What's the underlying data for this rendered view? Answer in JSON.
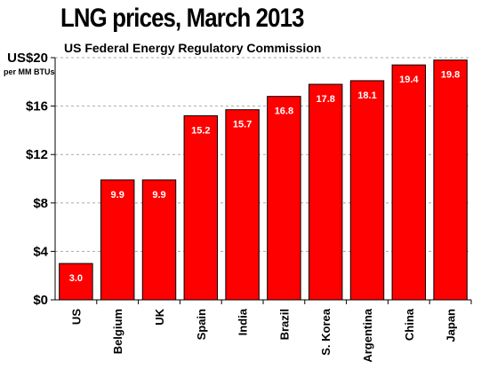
{
  "chart_data": {
    "type": "bar",
    "title": "LNG prices, March 2013",
    "subtitle": "US Federal Energy Regulatory Commission",
    "ylabel_units": "per MM BTUs",
    "categories": [
      "US",
      "Belgium",
      "UK",
      "Spain",
      "India",
      "Brazil",
      "S. Korea",
      "Argentina",
      "China",
      "Japan"
    ],
    "values": [
      3.0,
      9.9,
      9.9,
      15.2,
      15.7,
      16.8,
      17.8,
      18.1,
      19.4,
      19.8
    ],
    "value_labels": [
      "3.0",
      "9.9",
      "9.9",
      "15.2",
      "15.7",
      "16.8",
      "17.8",
      "18.1",
      "19.4",
      "19.8"
    ],
    "ylim": [
      0,
      20
    ],
    "yticks": [
      0,
      4,
      8,
      12,
      16,
      20
    ],
    "ytick_labels": [
      "$0",
      "$4",
      "$8",
      "$12",
      "$16",
      "US$20"
    ],
    "grid": true,
    "bar_color": "#ff0000",
    "bar_edge_color": "#000000",
    "grid_color": "#aaaaaa"
  }
}
